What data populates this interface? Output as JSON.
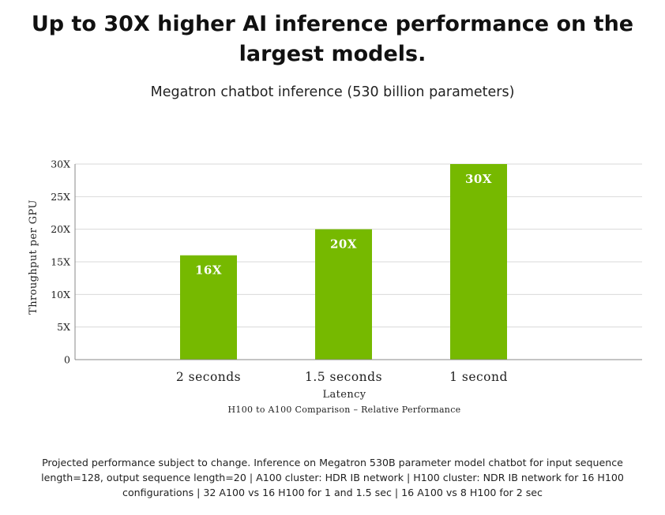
{
  "header": {
    "title_line1": "Up to 30X higher AI inference performance on the",
    "title_line2": "largest models."
  },
  "chart_data": {
    "type": "bar",
    "title": "Megatron chatbot inference (530 billion parameters)",
    "categories": [
      "2 seconds",
      "1.5 seconds",
      "1 second"
    ],
    "values": [
      16,
      20,
      30
    ],
    "data_labels": [
      "16X",
      "20X",
      "30X"
    ],
    "xlabel": "Latency",
    "ylabel": "Throughput per GPU",
    "caption": "H100 to A100 Comparison – Relative Performance",
    "ylim": [
      0,
      30
    ],
    "y_ticks": [
      0,
      5,
      10,
      15,
      20,
      25,
      30
    ],
    "y_tick_labels": [
      "0",
      "5X",
      "10X",
      "15X",
      "20X",
      "25X",
      "30X"
    ],
    "grid": true,
    "bar_color": "#76b900"
  },
  "footnote": {
    "line1": "Projected performance subject to change. Inference on Megatron 530B parameter model chatbot for input sequence",
    "line2": "length=128, output sequence length=20 | A100 cluster: HDR IB network | H100 cluster: NDR IB network for 16 H100",
    "line3": "configurations | 32 A100 vs 16 H100 for 1 and 1.5 sec | 16 A100 vs 8 H100 for 2 sec"
  }
}
